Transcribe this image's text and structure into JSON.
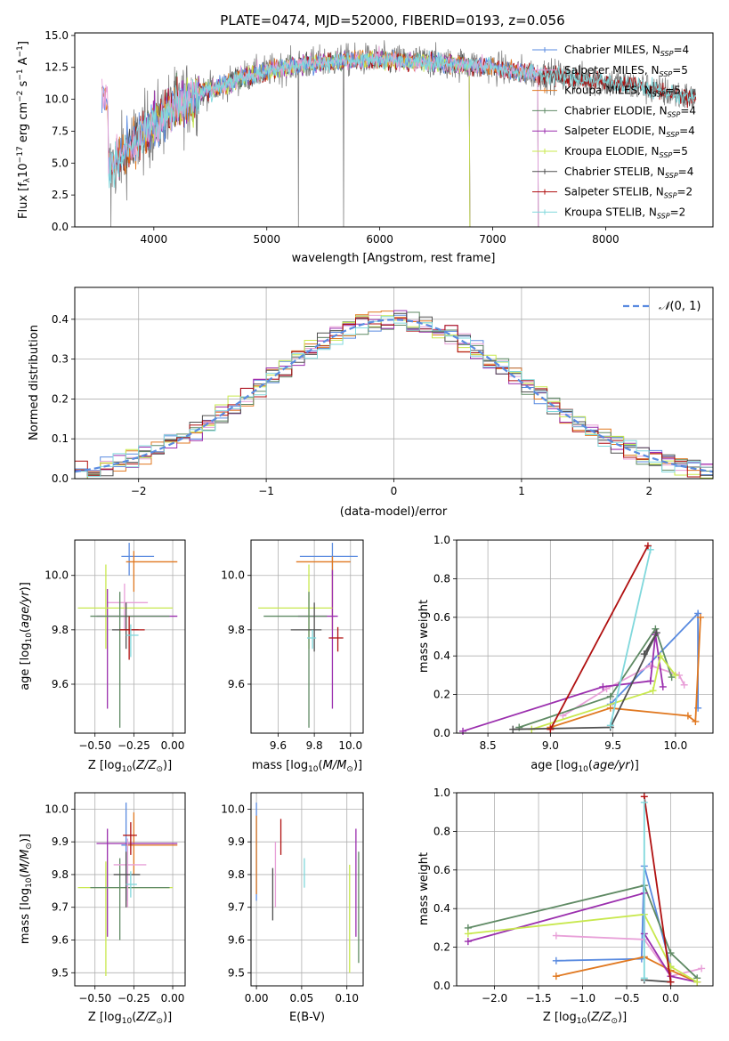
{
  "figure": {
    "title": "PLATE=0474, MJD=52000, FIBERID=0193, z=0.056"
  },
  "colors": [
    "#5a8be0",
    "#e8a0d8",
    "#e07820",
    "#5f8a64",
    "#9b2fae",
    "#c8e84e",
    "#505050",
    "#b01010",
    "#80d8dc"
  ],
  "chart_data": [
    {
      "id": "spectrum",
      "type": "line",
      "xlabel": "wavelength [Angstrom, rest frame]",
      "ylabel": "Flux [f$_\\lambda$10$^{-17}$ erg cm$^{-2}$ s$^{-1}$ A$^{-1}$]",
      "xlim": [
        3300,
        8950
      ],
      "ylim": [
        0,
        15.2
      ],
      "xticks": [
        "4000",
        "5000",
        "6000",
        "7000",
        "8000"
      ],
      "yticks": [
        "0.0",
        "2.5",
        "5.0",
        "7.5",
        "10.0",
        "12.5",
        "15.0"
      ],
      "legend_position": "top-right",
      "legend": [
        {
          "name": "Chabrier MILES",
          "n": "4"
        },
        {
          "name": "Salpeter MILES",
          "n": "5"
        },
        {
          "name": "Kroupa MILES",
          "n": "5"
        },
        {
          "name": "Chabrier ELODIE",
          "n": "4"
        },
        {
          "name": "Salpeter ELODIE",
          "n": "4"
        },
        {
          "name": "Kroupa ELODIE",
          "n": "5"
        },
        {
          "name": "Chabrier STELIB",
          "n": "4"
        },
        {
          "name": "Salpeter STELIB",
          "n": "2"
        },
        {
          "name": "Kroupa STELIB",
          "n": "2"
        }
      ],
      "continuum": [
        [
          3600,
          4.5
        ],
        [
          3800,
          6.5
        ],
        [
          4000,
          8.0
        ],
        [
          4200,
          9.5
        ],
        [
          4400,
          10.5
        ],
        [
          4600,
          11.0
        ],
        [
          4800,
          11.8
        ],
        [
          5000,
          12.2
        ],
        [
          5200,
          12.6
        ],
        [
          5400,
          12.8
        ],
        [
          5600,
          13.0
        ],
        [
          5800,
          13.1
        ],
        [
          6000,
          13.1
        ],
        [
          6200,
          13.0
        ],
        [
          6400,
          13.0
        ],
        [
          6600,
          12.8
        ],
        [
          6800,
          12.7
        ],
        [
          7000,
          12.5
        ],
        [
          7200,
          12.2
        ],
        [
          7400,
          12.0
        ],
        [
          7600,
          11.8
        ],
        [
          7800,
          11.6
        ],
        [
          8000,
          11.4
        ],
        [
          8200,
          11.1
        ],
        [
          8400,
          10.8
        ],
        [
          8600,
          10.4
        ],
        [
          8800,
          10.0
        ]
      ],
      "model_ranges": {
        "MILES": [
          3540,
          7410
        ],
        "ELODIE": [
          3900,
          6800
        ],
        "STELIB": [
          3600,
          8800
        ]
      }
    },
    {
      "id": "residuals",
      "type": "histogram",
      "xlabel": "(data-model)/error",
      "ylabel": "Normed distribution",
      "xlim": [
        -2.5,
        2.5
      ],
      "ylim": [
        0,
        0.48
      ],
      "xticks": [
        "−2",
        "−1",
        "0",
        "1",
        "2"
      ],
      "yticks": [
        "0.0",
        "0.1",
        "0.2",
        "0.3",
        "0.4"
      ],
      "bin_width": 0.1,
      "legend_position": "top-right",
      "legend_label": "N(0, 1)"
    },
    {
      "id": "age_vs_Z",
      "type": "errorbar",
      "xlabel": "Z [log10(Z/Z⊙)]",
      "ylabel": "age  [log10(age/yr)]",
      "xlim": [
        -0.63,
        0.08
      ],
      "ylim": [
        9.42,
        10.13
      ],
      "xticks": [
        "−0.50",
        "−0.25",
        "0.00"
      ],
      "yticks": [
        "9.6",
        "9.8",
        "10.0"
      ],
      "points": [
        {
          "c": 0,
          "x": -0.28,
          "y": 10.07,
          "xe": [
            -0.33,
            -0.12
          ],
          "ye": [
            10.0,
            10.12
          ]
        },
        {
          "c": 2,
          "x": -0.25,
          "y": 10.05,
          "xe": [
            -0.3,
            0.03
          ],
          "ye": [
            9.94,
            10.09
          ]
        },
        {
          "c": 1,
          "x": -0.31,
          "y": 9.9,
          "xe": [
            -0.42,
            -0.16
          ],
          "ye": [
            9.8,
            9.97
          ]
        },
        {
          "c": 4,
          "x": -0.42,
          "y": 9.85,
          "xe": [
            -0.49,
            0.03
          ],
          "ye": [
            9.51,
            9.95
          ]
        },
        {
          "c": 5,
          "x": -0.43,
          "y": 9.88,
          "xe": [
            -0.61,
            0.0
          ],
          "ye": [
            9.73,
            10.04
          ]
        },
        {
          "c": 3,
          "x": -0.34,
          "y": 9.85,
          "xe": [
            -0.53,
            -0.02
          ],
          "ye": [
            9.44,
            9.94
          ]
        },
        {
          "c": 6,
          "x": -0.3,
          "y": 9.8,
          "xe": [
            -0.39,
            -0.22
          ],
          "ye": [
            9.73,
            9.9
          ]
        },
        {
          "c": 7,
          "x": -0.28,
          "y": 9.8,
          "xe": [
            -0.34,
            -0.18
          ],
          "ye": [
            9.69,
            9.85
          ]
        },
        {
          "c": 8,
          "x": -0.27,
          "y": 9.78,
          "xe": [
            -0.3,
            -0.22
          ],
          "ye": [
            9.7,
            9.82
          ]
        }
      ]
    },
    {
      "id": "age_vs_mass",
      "type": "errorbar",
      "xlabel": "mass [log10(M/M⊙)]",
      "ylabel": "",
      "xlim": [
        9.45,
        10.07
      ],
      "ylim": [
        9.42,
        10.13
      ],
      "xticks": [
        "9.6",
        "9.8",
        "10.0"
      ],
      "yticks": [
        "9.6",
        "9.8",
        "10.0"
      ],
      "points": [
        {
          "c": 0,
          "x": 9.9,
          "y": 10.07,
          "xe": [
            9.72,
            10.04
          ],
          "ye": [
            10.0,
            10.12
          ]
        },
        {
          "c": 2,
          "x": 9.9,
          "y": 10.05,
          "xe": [
            9.7,
            10.0
          ],
          "ye": [
            9.8,
            10.07
          ]
        },
        {
          "c": 4,
          "x": 9.9,
          "y": 9.85,
          "xe": [
            9.71,
            9.93
          ],
          "ye": [
            9.51,
            10.02
          ]
        },
        {
          "c": 5,
          "x": 9.77,
          "y": 9.88,
          "xe": [
            9.49,
            9.9
          ],
          "ye": [
            9.73,
            10.04
          ]
        },
        {
          "c": 3,
          "x": 9.77,
          "y": 9.85,
          "xe": [
            9.52,
            9.87
          ],
          "ye": [
            9.44,
            9.94
          ]
        },
        {
          "c": 6,
          "x": 9.8,
          "y": 9.8,
          "xe": [
            9.67,
            9.84
          ],
          "ye": [
            9.72,
            9.9
          ]
        },
        {
          "c": 7,
          "x": 9.93,
          "y": 9.77,
          "xe": [
            9.88,
            9.96
          ],
          "ye": [
            9.72,
            9.81
          ]
        },
        {
          "c": 8,
          "x": 9.79,
          "y": 9.77,
          "xe": [
            9.76,
            9.81
          ],
          "ye": [
            9.73,
            9.8
          ]
        }
      ]
    },
    {
      "id": "mass_vs_Z",
      "type": "errorbar",
      "xlabel": "Z [log10(Z/Z⊙)]",
      "ylabel": "mass [log10(M/M⊙)]",
      "xlim": [
        -0.63,
        0.08
      ],
      "ylim": [
        9.46,
        10.05
      ],
      "xticks": [
        "−0.50",
        "−0.25",
        "0.00"
      ],
      "yticks": [
        "9.5",
        "9.6",
        "9.7",
        "9.8",
        "9.9",
        "10.0"
      ],
      "points": [
        {
          "c": 0,
          "x": -0.3,
          "y": 9.89,
          "xe": [
            -0.33,
            -0.25
          ],
          "ye": [
            9.72,
            10.02
          ]
        },
        {
          "c": 2,
          "x": -0.25,
          "y": 9.89,
          "xe": [
            -0.3,
            0.03
          ],
          "ye": [
            9.8,
            9.99
          ]
        },
        {
          "c": 4,
          "x": -0.42,
          "y": 9.895,
          "xe": [
            -0.49,
            0.03
          ],
          "ye": [
            9.61,
            9.94
          ]
        },
        {
          "c": 5,
          "x": -0.43,
          "y": 9.76,
          "xe": [
            -0.61,
            0.0
          ],
          "ye": [
            9.49,
            9.84
          ]
        },
        {
          "c": 3,
          "x": -0.34,
          "y": 9.76,
          "xe": [
            -0.53,
            -0.02
          ],
          "ye": [
            9.6,
            9.85
          ]
        },
        {
          "c": 1,
          "x": -0.29,
          "y": 9.83,
          "xe": [
            -0.38,
            -0.17
          ],
          "ye": [
            9.7,
            9.91
          ]
        },
        {
          "c": 6,
          "x": -0.3,
          "y": 9.8,
          "xe": [
            -0.38,
            -0.21
          ],
          "ye": [
            9.7,
            9.87
          ]
        },
        {
          "c": 7,
          "x": -0.27,
          "y": 9.92,
          "xe": [
            -0.32,
            -0.23
          ],
          "ye": [
            9.86,
            9.96
          ]
        },
        {
          "c": 8,
          "x": -0.27,
          "y": 9.77,
          "xe": [
            -0.3,
            -0.23
          ],
          "ye": [
            9.73,
            9.81
          ]
        }
      ]
    },
    {
      "id": "mass_vs_ebv",
      "type": "errorbar",
      "xlabel": "E(B-V)",
      "ylabel": "",
      "xlim": [
        -0.006,
        0.118
      ],
      "ylim": [
        9.46,
        10.05
      ],
      "xticks": [
        "0.00",
        "0.05",
        "0.10"
      ],
      "yticks": [
        "9.5",
        "9.6",
        "9.7",
        "9.8",
        "9.9",
        "10.0"
      ],
      "points": [
        {
          "c": 0,
          "x": 0.0,
          "y": 9.88,
          "ye": [
            9.72,
            10.02
          ]
        },
        {
          "c": 2,
          "x": 0.0,
          "y": 9.88,
          "ye": [
            9.74,
            9.98
          ]
        },
        {
          "c": 6,
          "x": 0.018,
          "y": 9.74,
          "ye": [
            9.66,
            9.82
          ]
        },
        {
          "c": 1,
          "x": 0.021,
          "y": 9.8,
          "ye": [
            9.7,
            9.9
          ]
        },
        {
          "c": 7,
          "x": 0.027,
          "y": 9.91,
          "ye": [
            9.86,
            9.97
          ]
        },
        {
          "c": 8,
          "x": 0.053,
          "y": 9.8,
          "ye": [
            9.76,
            9.85
          ]
        },
        {
          "c": 5,
          "x": 0.103,
          "y": 9.7,
          "ye": [
            9.5,
            9.83
          ]
        },
        {
          "c": 4,
          "x": 0.11,
          "y": 9.8,
          "ye": [
            9.61,
            9.94
          ]
        },
        {
          "c": 3,
          "x": 0.113,
          "y": 9.78,
          "ye": [
            9.53,
            9.87
          ]
        }
      ]
    },
    {
      "id": "weight_vs_age",
      "type": "line",
      "xlabel": "age  [log10(age/yr)]",
      "ylabel": "mass weight",
      "xlim": [
        8.25,
        10.3
      ],
      "ylim": [
        0,
        1.0
      ],
      "xticks": [
        "8.5",
        "9.0",
        "9.5",
        "10.0"
      ],
      "yticks": [
        "0.0",
        "0.2",
        "0.4",
        "0.6",
        "0.8",
        "1.0"
      ],
      "series": [
        {
          "c": 0,
          "pts": [
            [
              9.48,
              0.15
            ],
            [
              10.18,
              0.62
            ],
            [
              10.18,
              0.13
            ]
          ]
        },
        {
          "c": 1,
          "pts": [
            [
              9.1,
              0.09
            ],
            [
              9.45,
              0.23
            ],
            [
              9.8,
              0.35
            ],
            [
              10.03,
              0.3
            ],
            [
              10.07,
              0.25
            ]
          ]
        },
        {
          "c": 2,
          "pts": [
            [
              9.0,
              0.03
            ],
            [
              9.48,
              0.13
            ],
            [
              10.1,
              0.09
            ],
            [
              10.16,
              0.06
            ],
            [
              10.2,
              0.6
            ]
          ]
        },
        {
          "c": 3,
          "pts": [
            [
              8.75,
              0.03
            ],
            [
              9.48,
              0.19
            ],
            [
              9.84,
              0.54
            ],
            [
              9.97,
              0.29
            ]
          ]
        },
        {
          "c": 4,
          "pts": [
            [
              8.3,
              0.01
            ],
            [
              9.42,
              0.24
            ],
            [
              9.8,
              0.27
            ],
            [
              9.84,
              0.51
            ],
            [
              9.9,
              0.24
            ]
          ]
        },
        {
          "c": 5,
          "pts": [
            [
              8.85,
              0.02
            ],
            [
              9.82,
              0.22
            ],
            [
              9.88,
              0.4
            ],
            [
              10.0,
              0.3
            ]
          ]
        },
        {
          "c": 6,
          "pts": [
            [
              8.7,
              0.02
            ],
            [
              9.48,
              0.03
            ],
            [
              9.85,
              0.52
            ],
            [
              9.75,
              0.41
            ]
          ]
        },
        {
          "c": 7,
          "pts": [
            [
              9.0,
              0.02
            ],
            [
              9.78,
              0.97
            ]
          ]
        },
        {
          "c": 8,
          "pts": [
            [
              9.48,
              0.04
            ],
            [
              9.8,
              0.95
            ]
          ]
        }
      ]
    },
    {
      "id": "weight_vs_Z",
      "type": "line",
      "xlabel": "Z [log10(Z/Z⊙)]",
      "ylabel": "mass weight",
      "xlim": [
        -2.43,
        0.48
      ],
      "ylim": [
        0,
        1.0
      ],
      "xticks": [
        "−2.0",
        "−1.5",
        "−1.0",
        "−0.5",
        "0.0"
      ],
      "yticks": [
        "0.0",
        "0.2",
        "0.4",
        "0.6",
        "0.8",
        "1.0"
      ],
      "series": [
        {
          "c": 0,
          "pts": [
            [
              -1.3,
              0.13
            ],
            [
              -0.33,
              0.14
            ],
            [
              -0.3,
              0.62
            ],
            [
              0.0,
              0.1
            ]
          ]
        },
        {
          "c": 1,
          "pts": [
            [
              -1.3,
              0.26
            ],
            [
              -0.3,
              0.24
            ],
            [
              0.0,
              0.05
            ],
            [
              0.35,
              0.09
            ]
          ]
        },
        {
          "c": 2,
          "pts": [
            [
              -1.3,
              0.05
            ],
            [
              -0.3,
              0.15
            ],
            [
              0.0,
              0.08
            ],
            [
              0.3,
              0.02
            ]
          ]
        },
        {
          "c": 3,
          "pts": [
            [
              -2.3,
              0.3
            ],
            [
              -0.3,
              0.52
            ],
            [
              0.0,
              0.17
            ],
            [
              0.3,
              0.04
            ]
          ]
        },
        {
          "c": 4,
          "pts": [
            [
              -2.3,
              0.23
            ],
            [
              -0.3,
              0.48
            ],
            [
              -0.3,
              0.27
            ],
            [
              0.0,
              0.05
            ],
            [
              0.3,
              0.02
            ]
          ]
        },
        {
          "c": 5,
          "pts": [
            [
              -2.3,
              0.27
            ],
            [
              -0.3,
              0.37
            ],
            [
              0.0,
              0.1
            ],
            [
              0.3,
              0.02
            ]
          ]
        },
        {
          "c": 6,
          "pts": [
            [
              -0.3,
              0.03
            ],
            [
              0.0,
              0.02
            ]
          ]
        },
        {
          "c": 7,
          "pts": [
            [
              -0.3,
              0.98
            ],
            [
              0.0,
              0.02
            ]
          ]
        },
        {
          "c": 8,
          "pts": [
            [
              -0.3,
              0.95
            ],
            [
              -0.3,
              0.04
            ]
          ]
        }
      ]
    }
  ]
}
